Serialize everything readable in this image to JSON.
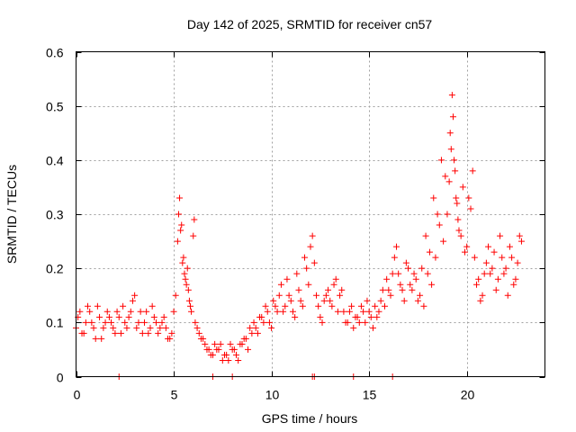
{
  "chart_data": {
    "type": "scatter",
    "title": "Day 142 of 2025, SRMTID for receiver cn57",
    "xlabel": "GPS time / hours",
    "ylabel": "SRMTID / TECUs",
    "xlim": [
      0,
      24
    ],
    "ylim": [
      0,
      0.6
    ],
    "x_ticks": [
      0,
      5,
      10,
      15,
      20
    ],
    "x_tick_labels": [
      "0",
      "5",
      "10",
      "15",
      "20"
    ],
    "y_ticks": [
      0,
      0.1,
      0.2,
      0.3,
      0.4,
      0.5,
      0.6
    ],
    "y_tick_labels": [
      "0",
      "0.1",
      "0.2",
      "0.3",
      "0.4",
      "0.5",
      "0.6"
    ],
    "grid": true,
    "marker": "+",
    "color": "#ff0000",
    "series": [
      {
        "name": "SRMTID",
        "x": [
          0.0,
          0.2,
          0.4,
          0.6,
          0.8,
          1.0,
          1.2,
          1.4,
          1.6,
          1.8,
          2.0,
          2.2,
          2.4,
          2.6,
          2.8,
          3.0,
          3.2,
          3.4,
          3.6,
          3.8,
          4.0,
          4.2,
          4.4,
          4.6,
          4.8,
          5.0,
          5.1,
          5.2,
          5.3,
          5.4,
          5.5,
          5.6,
          5.7,
          5.8,
          5.9,
          6.0,
          6.1,
          6.2,
          6.4,
          6.6,
          6.8,
          7.0,
          7.2,
          7.4,
          7.6,
          7.8,
          8.0,
          8.2,
          8.4,
          8.6,
          8.8,
          9.0,
          9.2,
          9.4,
          9.6,
          9.8,
          10.0,
          10.2,
          10.4,
          10.6,
          10.8,
          11.0,
          11.2,
          11.4,
          11.6,
          11.8,
          12.0,
          12.1,
          12.2,
          12.4,
          12.6,
          12.8,
          13.0,
          13.2,
          13.4,
          13.6,
          13.8,
          14.0,
          14.2,
          14.4,
          14.6,
          14.8,
          15.0,
          15.2,
          15.4,
          15.6,
          15.8,
          16.0,
          16.2,
          16.4,
          16.6,
          16.8,
          17.0,
          17.2,
          17.4,
          17.6,
          17.8,
          18.0,
          18.2,
          18.4,
          18.6,
          18.8,
          19.0,
          19.1,
          19.2,
          19.3,
          19.4,
          19.5,
          19.6,
          19.8,
          20.0,
          20.2,
          20.4,
          20.6,
          20.8,
          21.0,
          21.2,
          21.4,
          21.6,
          21.8,
          22.0,
          22.2,
          22.4,
          22.6,
          22.8,
          0.1,
          0.3,
          0.5,
          0.7,
          0.9,
          1.1,
          1.3,
          1.5,
          1.7,
          1.9,
          2.1,
          2.3,
          2.5,
          2.7,
          2.9,
          3.1,
          3.3,
          3.5,
          3.7,
          3.9,
          4.1,
          4.3,
          4.5,
          4.7,
          4.9,
          5.25,
          5.35,
          5.45,
          5.55,
          5.65,
          5.75,
          5.85,
          6.05,
          6.3,
          6.5,
          6.7,
          6.9,
          7.1,
          7.3,
          7.5,
          7.7,
          7.9,
          8.1,
          8.3,
          8.5,
          8.7,
          8.9,
          9.1,
          9.3,
          9.5,
          9.7,
          9.9,
          10.1,
          10.3,
          10.5,
          10.7,
          10.9,
          11.1,
          11.3,
          11.5,
          11.7,
          11.9,
          12.3,
          12.5,
          12.7,
          12.9,
          13.1,
          13.3,
          13.5,
          13.7,
          13.9,
          14.1,
          14.3,
          14.5,
          14.7,
          14.9,
          15.1,
          15.3,
          15.5,
          15.7,
          15.9,
          16.1,
          16.3,
          16.5,
          16.7,
          16.9,
          17.1,
          17.3,
          17.5,
          17.7,
          17.9,
          18.1,
          18.3,
          18.5,
          18.7,
          18.9,
          19.15,
          19.25,
          19.35,
          19.45,
          19.55,
          19.7,
          19.9,
          20.1,
          20.3,
          20.5,
          20.7,
          20.9,
          21.1,
          21.3,
          21.5,
          21.7,
          21.9,
          22.1,
          22.3,
          22.5,
          22.7,
          2.2,
          12.1,
          12.2,
          14.2,
          16.2,
          7.0,
          8.0
        ],
        "y": [
          0.09,
          0.12,
          0.08,
          0.13,
          0.1,
          0.07,
          0.11,
          0.09,
          0.12,
          0.1,
          0.08,
          0.11,
          0.13,
          0.09,
          0.12,
          0.15,
          0.1,
          0.08,
          0.12,
          0.09,
          0.11,
          0.08,
          0.1,
          0.09,
          0.07,
          0.12,
          0.15,
          0.25,
          0.33,
          0.28,
          0.22,
          0.18,
          0.2,
          0.14,
          0.12,
          0.26,
          0.1,
          0.09,
          0.07,
          0.06,
          0.05,
          0.04,
          0.05,
          0.06,
          0.04,
          0.03,
          0.05,
          0.04,
          0.06,
          0.07,
          0.05,
          0.08,
          0.09,
          0.11,
          0.1,
          0.12,
          0.09,
          0.13,
          0.15,
          0.12,
          0.18,
          0.14,
          0.11,
          0.16,
          0.13,
          0.2,
          0.24,
          0.26,
          0.21,
          0.13,
          0.1,
          0.15,
          0.14,
          0.17,
          0.12,
          0.16,
          0.1,
          0.12,
          0.09,
          0.11,
          0.13,
          0.1,
          0.12,
          0.09,
          0.11,
          0.14,
          0.13,
          0.16,
          0.19,
          0.24,
          0.17,
          0.14,
          0.2,
          0.16,
          0.18,
          0.15,
          0.13,
          0.19,
          0.17,
          0.22,
          0.28,
          0.25,
          0.3,
          0.36,
          0.42,
          0.48,
          0.38,
          0.32,
          0.27,
          0.35,
          0.24,
          0.31,
          0.22,
          0.18,
          0.15,
          0.21,
          0.19,
          0.23,
          0.18,
          0.22,
          0.2,
          0.24,
          0.17,
          0.21,
          0.25,
          0.11,
          0.08,
          0.1,
          0.12,
          0.09,
          0.13,
          0.07,
          0.1,
          0.11,
          0.09,
          0.12,
          0.08,
          0.1,
          0.11,
          0.14,
          0.09,
          0.12,
          0.1,
          0.08,
          0.13,
          0.1,
          0.09,
          0.11,
          0.07,
          0.08,
          0.3,
          0.27,
          0.21,
          0.19,
          0.17,
          0.16,
          0.13,
          0.29,
          0.08,
          0.07,
          0.05,
          0.04,
          0.06,
          0.05,
          0.03,
          0.04,
          0.06,
          0.05,
          0.03,
          0.06,
          0.07,
          0.09,
          0.1,
          0.08,
          0.11,
          0.13,
          0.1,
          0.14,
          0.12,
          0.17,
          0.13,
          0.15,
          0.12,
          0.19,
          0.14,
          0.22,
          0.17,
          0.15,
          0.11,
          0.14,
          0.16,
          0.13,
          0.18,
          0.15,
          0.12,
          0.1,
          0.13,
          0.11,
          0.1,
          0.12,
          0.14,
          0.11,
          0.13,
          0.12,
          0.16,
          0.18,
          0.15,
          0.22,
          0.19,
          0.16,
          0.21,
          0.17,
          0.19,
          0.14,
          0.2,
          0.26,
          0.23,
          0.33,
          0.3,
          0.4,
          0.37,
          0.45,
          0.52,
          0.4,
          0.33,
          0.29,
          0.26,
          0.23,
          0.33,
          0.38,
          0.17,
          0.14,
          0.19,
          0.24,
          0.2,
          0.16,
          0.26,
          0.19,
          0.15,
          0.22,
          0.18,
          0.26,
          0.0,
          0.0,
          0.0,
          0.0,
          0.0,
          0.0,
          0.0
        ]
      }
    ]
  }
}
